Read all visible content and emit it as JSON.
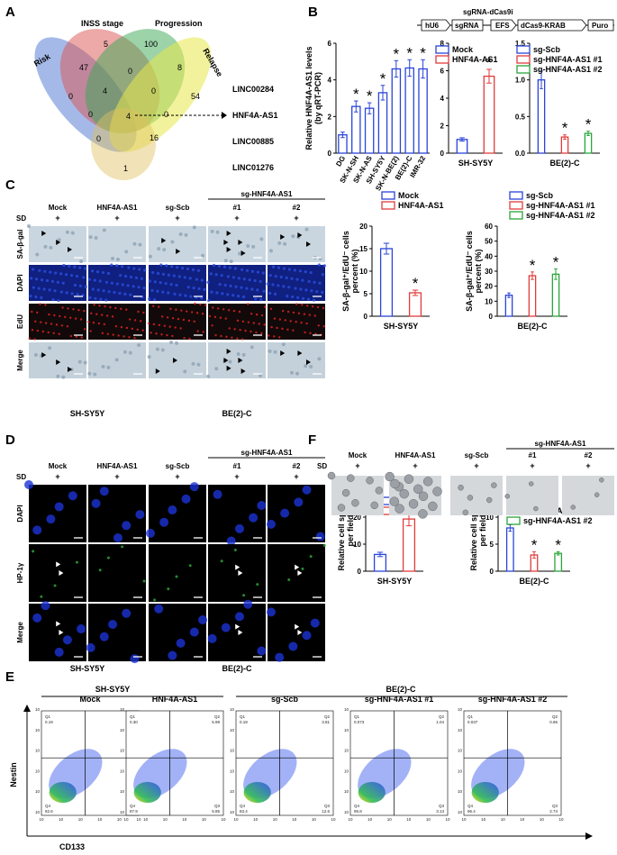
{
  "panels": {
    "A": "A",
    "B": "B",
    "C": "C",
    "D": "D",
    "E": "E",
    "F": "F"
  },
  "venn": {
    "sets": [
      {
        "name": "Risk",
        "color": "#5b7fd6"
      },
      {
        "name": "INSS stage",
        "color": "#d9534f"
      },
      {
        "name": "Progression",
        "color": "#3aa853"
      },
      {
        "name": "Relapse",
        "color": "#e8e84a"
      },
      {
        "name": "",
        "color": "#e0c060"
      }
    ],
    "counts": [
      "5",
      "100",
      "47",
      "0",
      "8",
      "0",
      "4",
      "0",
      "54",
      "4",
      "0",
      "0",
      "16",
      "0",
      "1"
    ],
    "genes": [
      "LINC00284",
      "HNF4A-AS1",
      "LINC00885",
      "LINC01276"
    ]
  },
  "construct": {
    "title": "sgRNA-dCas9i",
    "boxes": [
      "hU6",
      "sgRNA",
      "EFS",
      "dCas9-KRAB",
      "Puro"
    ]
  },
  "colors": {
    "mock": "#2a44d8",
    "over": "#e23b3b",
    "sg1": "#e23b3b",
    "sg2": "#2aa53a",
    "scb": "#2a44d8"
  },
  "star": "*",
  "chart_data": [
    {
      "type": "bar",
      "ylabel": "Relative HNF4A-AS1 levels (by qRT-PCR)",
      "ylim": [
        0,
        6
      ],
      "yticks": [
        "0",
        "2",
        "4",
        "6"
      ],
      "categories": [
        "DG",
        "SK-N-SH",
        "SK-N-AS",
        "SH-SY5Y",
        "SK-N-BE(2)",
        "BE(2)-C",
        "IMR-32"
      ],
      "values": [
        1.0,
        2.55,
        2.45,
        3.3,
        4.6,
        4.65,
        4.6
      ],
      "errors": [
        0.15,
        0.3,
        0.3,
        0.4,
        0.45,
        0.45,
        0.5
      ],
      "sig": [
        false,
        true,
        true,
        true,
        true,
        true,
        true
      ]
    },
    {
      "type": "bar",
      "xlabel": "SH-SY5Y",
      "ylim": [
        0,
        8
      ],
      "yticks": [
        "0",
        "2",
        "4",
        "6",
        "8"
      ],
      "series": [
        {
          "name": "Mock",
          "values": [
            1.0
          ],
          "errors": [
            0.12
          ]
        },
        {
          "name": "HNF4A-AS1",
          "values": [
            5.6
          ],
          "errors": [
            0.5
          ]
        }
      ],
      "sig": [
        false,
        true
      ]
    },
    {
      "type": "bar",
      "xlabel": "BE(2)-C",
      "ylim": [
        0,
        1.5
      ],
      "yticks": [
        "0.0",
        "0.5",
        "1.0",
        "1.5"
      ],
      "series": [
        {
          "name": "sg-Scb",
          "values": [
            1.0
          ],
          "errors": [
            0.12
          ]
        },
        {
          "name": "sg-HNF4A-AS1 #1",
          "values": [
            0.22
          ],
          "errors": [
            0.03
          ]
        },
        {
          "name": "sg-HNF4A-AS1 #2",
          "values": [
            0.27
          ],
          "errors": [
            0.03
          ]
        }
      ],
      "sig": [
        false,
        true,
        true
      ]
    },
    {
      "type": "bar",
      "ylabel": "SA-β-gal+/EdU- cells percent (%)",
      "xlabel": "SH-SY5Y",
      "ylim": [
        0,
        20
      ],
      "yticks": [
        "0",
        "5",
        "10",
        "15",
        "20"
      ],
      "series": [
        {
          "name": "Mock",
          "values": [
            15
          ],
          "errors": [
            1.2
          ]
        },
        {
          "name": "HNF4A-AS1",
          "values": [
            5.2
          ],
          "errors": [
            0.6
          ]
        }
      ],
      "sig": [
        false,
        true
      ]
    },
    {
      "type": "bar",
      "ylabel": "SA-β-gal+/EdU- cells percent (%)",
      "xlabel": "BE(2)-C",
      "ylim": [
        0,
        60
      ],
      "yticks": [
        "0",
        "10",
        "20",
        "30",
        "40",
        "50",
        "60"
      ],
      "series": [
        {
          "name": "sg-Scb",
          "values": [
            14
          ],
          "errors": [
            1.5
          ]
        },
        {
          "name": "sg-HNF4A-AS1 #1",
          "values": [
            27
          ],
          "errors": [
            2.5
          ]
        },
        {
          "name": "sg-HNF4A-AS1 #2",
          "values": [
            28
          ],
          "errors": [
            3.5
          ]
        }
      ],
      "sig": [
        false,
        true,
        true
      ]
    },
    {
      "type": "bar",
      "ylabel": "Relative cell spheres per field",
      "xlabel": "SH-SY5Y",
      "ylim": [
        0,
        30
      ],
      "yticks": [
        "0",
        "10",
        "20",
        "30"
      ],
      "series": [
        {
          "name": "Mock",
          "values": [
            6.2
          ],
          "errors": [
            0.8
          ]
        },
        {
          "name": "HNF4A-AS1",
          "values": [
            19.3
          ],
          "errors": [
            2.5
          ]
        }
      ],
      "sig": [
        false,
        true
      ]
    },
    {
      "type": "bar",
      "ylabel": "Relative cell spheres per field",
      "xlabel": "BE(2)-C",
      "ylim": [
        0,
        15
      ],
      "yticks": [
        "0",
        "5",
        "10",
        "15"
      ],
      "series": [
        {
          "name": "sg-Scb",
          "values": [
            8
          ],
          "errors": [
            0.6
          ]
        },
        {
          "name": "sg-HNF4A-AS1 #1",
          "values": [
            3.0
          ],
          "errors": [
            0.6
          ]
        },
        {
          "name": "sg-HNF4A-AS1 #2",
          "values": [
            3.3
          ],
          "errors": [
            0.3
          ]
        }
      ],
      "sig": [
        false,
        true,
        true
      ]
    }
  ],
  "panelC": {
    "sd": "SD",
    "plus": "+",
    "cols": [
      "Mock",
      "HNF4A-AS1",
      "sg-Scb",
      "#1",
      "#2"
    ],
    "group": "sg-HNF4A-AS1",
    "rows": [
      "SA-β-gal",
      "DAPI",
      "EdU",
      "Merge"
    ],
    "cells": [
      "SH-SY5Y",
      "BE(2)-C"
    ]
  },
  "panelD": {
    "sd": "SD",
    "plus": "+",
    "cols": [
      "Mock",
      "HNF4A-AS1",
      "sg-Scb",
      "#1",
      "#2"
    ],
    "group": "sg-HNF4A-AS1",
    "rows": [
      "DAPI",
      "HP-1γ",
      "Merge"
    ],
    "cells": [
      "SH-SY5Y",
      "BE(2)-C"
    ]
  },
  "panelF": {
    "sd": "SD",
    "plus": "+",
    "cols": [
      "Mock",
      "HNF4A-AS1",
      "sg-Scb",
      "#1",
      "#2"
    ],
    "group": "sg-HNF4A-AS1"
  },
  "panelE": {
    "cells": [
      "SH-SY5Y",
      "BE(2)-C"
    ],
    "cols": [
      "Mock",
      "HNF4A-AS1",
      "sg-Scb",
      "sg-HNF4A-AS1 #1",
      "sg-HNF4A-AS1 #2"
    ],
    "ylabel": "Nestin",
    "xlabel": "CD133",
    "quad": [
      {
        "Q1": "0.19",
        "Q2": "3.83",
        "Q3": "13.3",
        "Q4": "82.6"
      },
      {
        "Q1": "0.30",
        "Q2": "5.99",
        "Q3": "5.85",
        "Q4": "87.9"
      },
      {
        "Q1": "0.19",
        "Q2": "3.81",
        "Q3": "12.6",
        "Q4": "83.4"
      },
      {
        "Q1": "0.073",
        "Q2": "1.04",
        "Q3": "3.13",
        "Q4": "95.8"
      },
      {
        "Q1": "0.037",
        "Q2": "0.86",
        "Q3": "2.74",
        "Q4": "96.4"
      }
    ],
    "qnames": [
      "Q1",
      "Q2",
      "Q3",
      "Q4"
    ],
    "axticks": [
      "10",
      "10",
      "10",
      "10",
      "10",
      "10"
    ]
  }
}
